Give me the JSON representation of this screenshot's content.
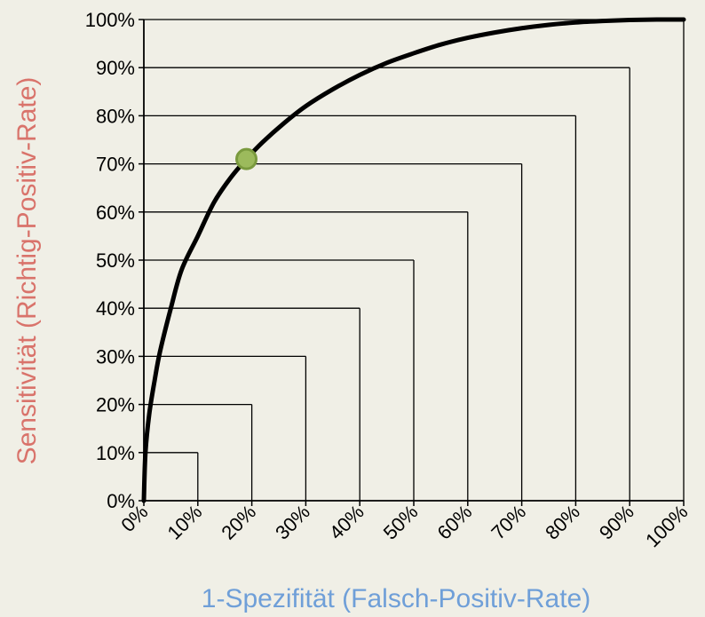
{
  "chart_data": {
    "type": "line",
    "title": "",
    "xlabel": "1-Spezifität (Falsch-Positiv-Rate)",
    "ylabel": "Sensitivität (Richtig-Positiv-Rate)",
    "xlim": [
      0,
      100
    ],
    "ylim": [
      0,
      100
    ],
    "x_ticks": [
      "0%",
      "10%",
      "20%",
      "30%",
      "40%",
      "50%",
      "60%",
      "70%",
      "80%",
      "90%",
      "100%"
    ],
    "y_ticks": [
      "0%",
      "10%",
      "20%",
      "30%",
      "40%",
      "50%",
      "60%",
      "70%",
      "80%",
      "90%",
      "100%"
    ],
    "colors": {
      "background": "#f0efe6",
      "curve": "#000000",
      "grid": "#000000",
      "xlabel": "#6f9fd8",
      "ylabel": "#d9736b",
      "marker_fill": "#9cba5c",
      "marker_stroke": "#7a9a3e"
    },
    "series": [
      {
        "x": [
          0,
          0.3,
          1,
          2,
          3,
          5,
          7,
          10,
          13,
          16,
          19,
          22,
          26,
          30,
          35,
          40,
          45,
          50,
          55,
          60,
          65,
          70,
          75,
          80,
          85,
          90,
          95,
          100
        ],
        "y": [
          0,
          10,
          18,
          25,
          31,
          40,
          48,
          55,
          62,
          67,
          71,
          74.5,
          78.5,
          82,
          85.5,
          88.5,
          91,
          93,
          94.8,
          96.2,
          97.3,
          98.2,
          98.9,
          99.4,
          99.7,
          99.9,
          100,
          100
        ]
      }
    ],
    "highlight_point": {
      "x": 19,
      "y": 71
    },
    "staircase": {
      "note_free": true,
      "steps": [
        {
          "x": 10,
          "y": 10
        },
        {
          "x": 20,
          "y": 20
        },
        {
          "x": 30,
          "y": 30
        },
        {
          "x": 40,
          "y": 40
        },
        {
          "x": 50,
          "y": 50
        },
        {
          "x": 60,
          "y": 60
        },
        {
          "x": 70,
          "y": 70
        },
        {
          "x": 80,
          "y": 80
        },
        {
          "x": 90,
          "y": 90
        }
      ]
    }
  }
}
